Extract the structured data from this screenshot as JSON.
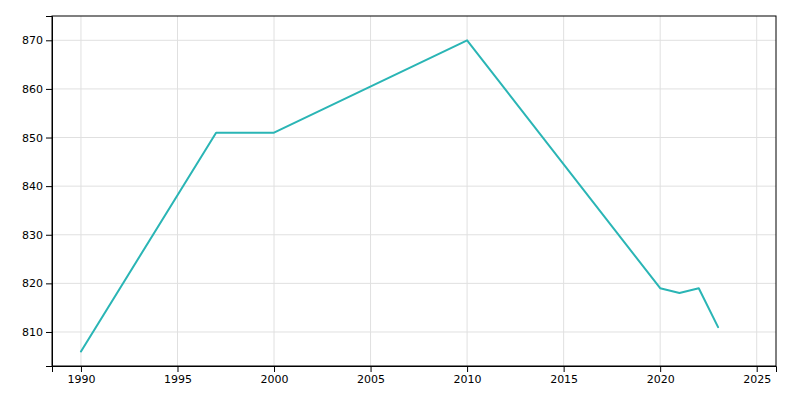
{
  "chart_data": {
    "type": "line",
    "x": [
      1990,
      1997,
      2000,
      2010,
      2020,
      2021,
      2022,
      2023
    ],
    "values": [
      806,
      851,
      851,
      870,
      819,
      818,
      819,
      811
    ],
    "color": "#2ab5b5",
    "xlim": [
      1988.5,
      2026
    ],
    "ylim": [
      803,
      875
    ],
    "xticks": [
      1990,
      1995,
      2000,
      2005,
      2010,
      2015,
      2020,
      2025
    ],
    "yticks": [
      810,
      820,
      830,
      840,
      850,
      860,
      870
    ],
    "grid": true
  }
}
